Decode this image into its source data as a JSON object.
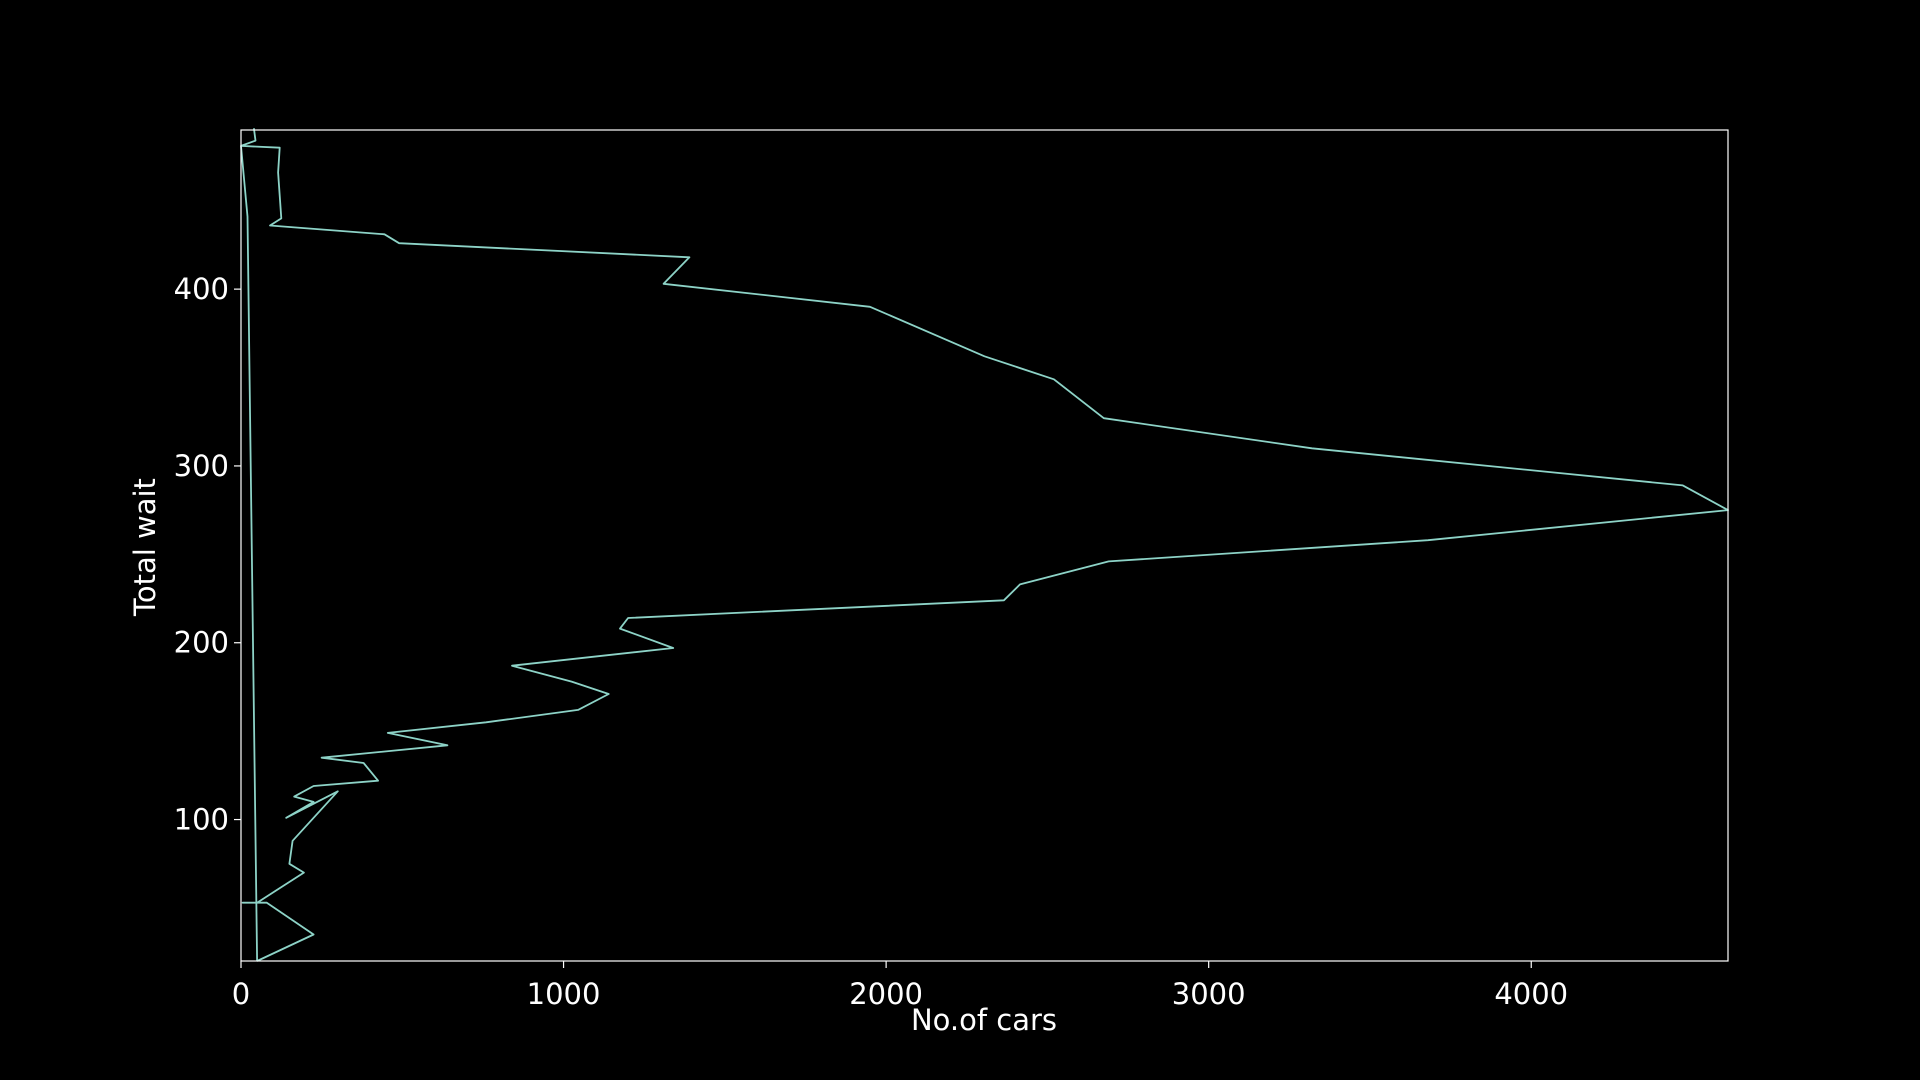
{
  "chart_data": {
    "type": "line",
    "title": "",
    "xlabel": "No.of cars",
    "ylabel": "Total wait",
    "xlim": [
      0,
      4610
    ],
    "ylim": [
      20,
      490
    ],
    "grid": false,
    "legend": "none",
    "x_ticks": [
      0,
      1000,
      2000,
      3000,
      4000
    ],
    "y_ticks": [
      100,
      200,
      300,
      400
    ],
    "colors": {
      "background": "#000000",
      "line": "#8dd3c7",
      "frame": "#ffffff",
      "text": "#ffffff"
    },
    "series": [
      {
        "points": [
          [
            50,
            20
          ],
          [
            225,
            35
          ],
          [
            80,
            53
          ],
          [
            5,
            53
          ],
          [
            50,
            53
          ],
          [
            195,
            70
          ],
          [
            150,
            75
          ],
          [
            160,
            88
          ],
          [
            300,
            116
          ],
          [
            140,
            101
          ],
          [
            225,
            110
          ],
          [
            165,
            113
          ],
          [
            225,
            119
          ],
          [
            425,
            122
          ],
          [
            380,
            132
          ],
          [
            250,
            135
          ],
          [
            640,
            142
          ],
          [
            455,
            149
          ],
          [
            760,
            155
          ],
          [
            1045,
            162
          ],
          [
            1140,
            171
          ],
          [
            1025,
            178
          ],
          [
            840,
            187
          ],
          [
            1340,
            197
          ],
          [
            1175,
            208
          ],
          [
            1200,
            214
          ],
          [
            2365,
            224
          ],
          [
            2415,
            233
          ],
          [
            2690,
            246
          ],
          [
            3680,
            258
          ],
          [
            4610,
            275
          ],
          [
            4470,
            289
          ],
          [
            3320,
            310
          ],
          [
            2675,
            327
          ],
          [
            2520,
            349
          ],
          [
            2305,
            362
          ],
          [
            1950,
            390
          ],
          [
            1310,
            403
          ],
          [
            1390,
            418
          ],
          [
            490,
            426
          ],
          [
            445,
            431
          ],
          [
            90,
            436
          ],
          [
            125,
            440
          ],
          [
            120,
            453
          ],
          [
            115,
            466
          ],
          [
            120,
            480
          ],
          [
            0,
            481
          ],
          [
            45,
            484
          ],
          [
            40,
            491
          ]
        ]
      },
      {
        "points": [
          [
            50,
            20
          ],
          [
            20,
            441
          ],
          [
            0,
            481
          ]
        ]
      }
    ]
  }
}
